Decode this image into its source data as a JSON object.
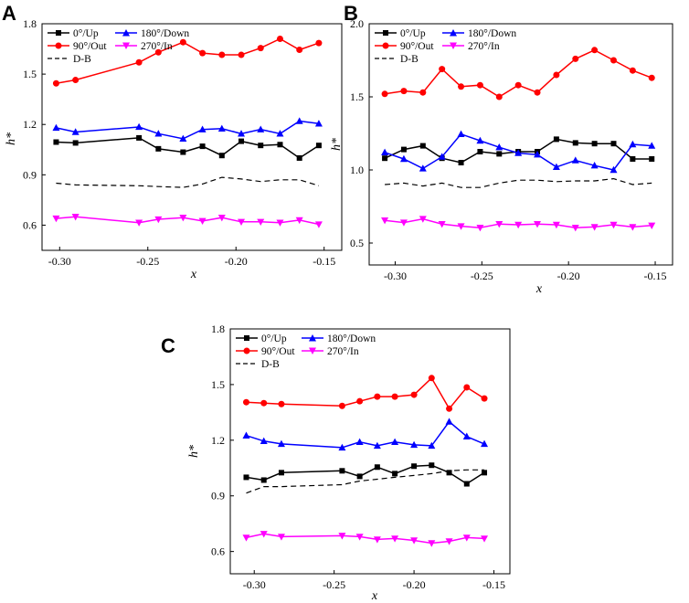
{
  "colors": {
    "up": "#000000",
    "down": "#0000ff",
    "out": "#ff0000",
    "in": "#ff00ff",
    "db": "#000000"
  },
  "legend": {
    "up": "0°/Up",
    "down": "180°/Down",
    "out": "90°/Out",
    "in": "270°/In",
    "db": "D-B"
  },
  "chart_data": [
    {
      "panel": "A",
      "type": "line",
      "xlabel": "x",
      "ylabel": "h*",
      "xlim": [
        -0.31,
        -0.14
      ],
      "ylim": [
        0.45,
        1.8
      ],
      "xticks": [
        -0.3,
        -0.25,
        -0.2,
        -0.15
      ],
      "xtick_labels": [
        "-0.30",
        "-0.25",
        "-0.20",
        "-0.15"
      ],
      "yticks": [
        0.6,
        0.9,
        1.2,
        1.5,
        1.8
      ],
      "ytick_labels": [
        "0.6",
        "0.9",
        "1.2",
        "1.5",
        "1.8"
      ],
      "series": [
        {
          "name": "0°/Up",
          "key": "up",
          "marker": "square",
          "x": [
            -0.302,
            -0.291,
            -0.255,
            -0.244,
            -0.23,
            -0.219,
            -0.208,
            -0.197,
            -0.186,
            -0.175,
            -0.164,
            -0.153
          ],
          "values": [
            1.095,
            1.09,
            1.12,
            1.055,
            1.035,
            1.07,
            1.015,
            1.1,
            1.075,
            1.08,
            1.0,
            1.075
          ]
        },
        {
          "name": "180°/Down",
          "key": "down",
          "marker": "triangle-up",
          "x": [
            -0.302,
            -0.291,
            -0.255,
            -0.244,
            -0.23,
            -0.219,
            -0.208,
            -0.197,
            -0.186,
            -0.175,
            -0.164,
            -0.153
          ],
          "values": [
            1.18,
            1.155,
            1.185,
            1.145,
            1.115,
            1.17,
            1.175,
            1.145,
            1.17,
            1.145,
            1.22,
            1.205
          ]
        },
        {
          "name": "90°/Out",
          "key": "out",
          "marker": "circle",
          "x": [
            -0.302,
            -0.291,
            -0.255,
            -0.244,
            -0.23,
            -0.219,
            -0.208,
            -0.197,
            -0.186,
            -0.175,
            -0.164,
            -0.153
          ],
          "values": [
            1.445,
            1.465,
            1.57,
            1.63,
            1.69,
            1.625,
            1.615,
            1.615,
            1.655,
            1.71,
            1.645,
            1.685
          ]
        },
        {
          "name": "270°/In",
          "key": "in",
          "marker": "triangle-down",
          "x": [
            -0.302,
            -0.291,
            -0.255,
            -0.244,
            -0.23,
            -0.219,
            -0.208,
            -0.197,
            -0.186,
            -0.175,
            -0.164,
            -0.153
          ],
          "values": [
            0.64,
            0.65,
            0.615,
            0.635,
            0.645,
            0.625,
            0.645,
            0.62,
            0.62,
            0.615,
            0.63,
            0.605
          ]
        },
        {
          "name": "D-B",
          "key": "db",
          "marker": "none",
          "dashed": true,
          "x": [
            -0.302,
            -0.291,
            -0.255,
            -0.244,
            -0.23,
            -0.219,
            -0.208,
            -0.197,
            -0.186,
            -0.175,
            -0.164,
            -0.153
          ],
          "values": [
            0.85,
            0.84,
            0.835,
            0.83,
            0.825,
            0.845,
            0.885,
            0.875,
            0.86,
            0.87,
            0.87,
            0.835
          ]
        }
      ]
    },
    {
      "panel": "B",
      "type": "line",
      "xlabel": "x",
      "ylabel": "h*",
      "xlim": [
        -0.315,
        -0.14
      ],
      "ylim": [
        0.35,
        2.0
      ],
      "xticks": [
        -0.3,
        -0.25,
        -0.2,
        -0.15
      ],
      "xtick_labels": [
        "-0.30",
        "-0.25",
        "-0.20",
        "-0.15"
      ],
      "yticks": [
        0.5,
        1.0,
        1.5,
        2.0
      ],
      "ytick_labels": [
        "0.5",
        "1.0",
        "1.5",
        "2.0"
      ],
      "series": [
        {
          "name": "0°/Up",
          "key": "up",
          "marker": "square",
          "x": [
            -0.306,
            -0.295,
            -0.284,
            -0.273,
            -0.262,
            -0.251,
            -0.24,
            -0.229,
            -0.218,
            -0.207,
            -0.196,
            -0.185,
            -0.174,
            -0.163,
            -0.152
          ],
          "values": [
            1.08,
            1.14,
            1.165,
            1.08,
            1.05,
            1.125,
            1.11,
            1.125,
            1.125,
            1.21,
            1.185,
            1.18,
            1.18,
            1.075,
            1.075
          ]
        },
        {
          "name": "180°/Down",
          "key": "down",
          "marker": "triangle-up",
          "x": [
            -0.306,
            -0.295,
            -0.284,
            -0.273,
            -0.262,
            -0.251,
            -0.24,
            -0.229,
            -0.218,
            -0.207,
            -0.196,
            -0.185,
            -0.174,
            -0.163,
            -0.152
          ],
          "values": [
            1.12,
            1.075,
            1.01,
            1.09,
            1.245,
            1.2,
            1.155,
            1.115,
            1.105,
            1.02,
            1.065,
            1.03,
            1.0,
            1.175,
            1.165
          ]
        },
        {
          "name": "90°/Out",
          "key": "out",
          "marker": "circle",
          "x": [
            -0.306,
            -0.295,
            -0.284,
            -0.273,
            -0.262,
            -0.251,
            -0.24,
            -0.229,
            -0.218,
            -0.207,
            -0.196,
            -0.185,
            -0.174,
            -0.163,
            -0.152
          ],
          "values": [
            1.52,
            1.54,
            1.53,
            1.69,
            1.57,
            1.58,
            1.5,
            1.58,
            1.53,
            1.65,
            1.76,
            1.82,
            1.75,
            1.68,
            1.63
          ]
        },
        {
          "name": "270°/In",
          "key": "in",
          "marker": "triangle-down",
          "x": [
            -0.306,
            -0.295,
            -0.284,
            -0.273,
            -0.262,
            -0.251,
            -0.24,
            -0.229,
            -0.218,
            -0.207,
            -0.196,
            -0.185,
            -0.174,
            -0.163,
            -0.152
          ],
          "values": [
            0.655,
            0.64,
            0.665,
            0.63,
            0.615,
            0.605,
            0.63,
            0.625,
            0.63,
            0.625,
            0.605,
            0.61,
            0.625,
            0.61,
            0.62
          ]
        },
        {
          "name": "D-B",
          "key": "db",
          "marker": "none",
          "dashed": true,
          "x": [
            -0.306,
            -0.295,
            -0.284,
            -0.273,
            -0.262,
            -0.251,
            -0.24,
            -0.229,
            -0.218,
            -0.207,
            -0.196,
            -0.185,
            -0.174,
            -0.163,
            -0.152
          ],
          "values": [
            0.9,
            0.91,
            0.89,
            0.91,
            0.88,
            0.88,
            0.91,
            0.93,
            0.93,
            0.92,
            0.925,
            0.925,
            0.94,
            0.9,
            0.91
          ]
        }
      ]
    },
    {
      "panel": "C",
      "type": "line",
      "xlabel": "x",
      "ylabel": "h*",
      "xlim": [
        -0.315,
        -0.14
      ],
      "ylim": [
        0.48,
        1.8
      ],
      "xticks": [
        -0.3,
        -0.25,
        -0.2,
        -0.15
      ],
      "xtick_labels": [
        "-0.30",
        "-0.25",
        "-0.20",
        "-0.15"
      ],
      "yticks": [
        0.6,
        0.9,
        1.2,
        1.5,
        1.8
      ],
      "ytick_labels": [
        "0.6",
        "0.9",
        "1.2",
        "1.5",
        "1.8"
      ],
      "series": [
        {
          "name": "0°/Up",
          "key": "up",
          "marker": "square",
          "x": [
            -0.305,
            -0.294,
            -0.283,
            -0.245,
            -0.234,
            -0.223,
            -0.212,
            -0.2,
            -0.189,
            -0.178,
            -0.167,
            -0.156
          ],
          "values": [
            1.0,
            0.985,
            1.025,
            1.035,
            1.005,
            1.055,
            1.02,
            1.06,
            1.065,
            1.025,
            0.965,
            1.025
          ]
        },
        {
          "name": "180°/Down",
          "key": "down",
          "marker": "triangle-up",
          "x": [
            -0.305,
            -0.294,
            -0.283,
            -0.245,
            -0.234,
            -0.223,
            -0.212,
            -0.2,
            -0.189,
            -0.178,
            -0.167,
            -0.156
          ],
          "values": [
            1.225,
            1.195,
            1.18,
            1.16,
            1.19,
            1.17,
            1.19,
            1.175,
            1.17,
            1.3,
            1.22,
            1.18
          ]
        },
        {
          "name": "90°/Out",
          "key": "out",
          "marker": "circle",
          "x": [
            -0.305,
            -0.294,
            -0.283,
            -0.245,
            -0.234,
            -0.223,
            -0.212,
            -0.2,
            -0.189,
            -0.178,
            -0.167,
            -0.156
          ],
          "values": [
            1.405,
            1.4,
            1.395,
            1.385,
            1.41,
            1.435,
            1.435,
            1.445,
            1.535,
            1.37,
            1.485,
            1.425
          ]
        },
        {
          "name": "270°/In",
          "key": "in",
          "marker": "triangle-down",
          "x": [
            -0.305,
            -0.294,
            -0.283,
            -0.245,
            -0.234,
            -0.223,
            -0.212,
            -0.2,
            -0.189,
            -0.178,
            -0.167,
            -0.156
          ],
          "values": [
            0.675,
            0.695,
            0.68,
            0.685,
            0.68,
            0.665,
            0.67,
            0.66,
            0.645,
            0.655,
            0.675,
            0.67
          ]
        },
        {
          "name": "D-B",
          "key": "db",
          "marker": "none",
          "dashed": true,
          "x": [
            -0.305,
            -0.294,
            -0.283,
            -0.245,
            -0.234,
            -0.223,
            -0.212,
            -0.2,
            -0.189,
            -0.178,
            -0.167,
            -0.156
          ],
          "values": [
            0.915,
            0.95,
            0.95,
            0.96,
            0.98,
            0.99,
            1.0,
            1.01,
            1.02,
            1.035,
            1.04,
            1.04
          ]
        }
      ]
    }
  ]
}
